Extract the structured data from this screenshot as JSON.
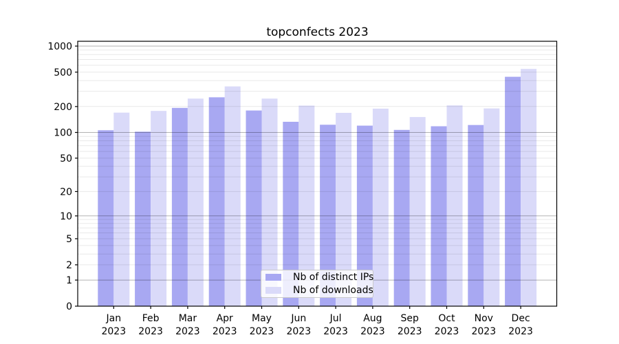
{
  "chart_data": {
    "type": "bar",
    "title": "topconfects 2023",
    "categories": [
      "Jan",
      "Feb",
      "Mar",
      "Apr",
      "May",
      "Jun",
      "Jul",
      "Aug",
      "Sep",
      "Oct",
      "Nov",
      "Dec"
    ],
    "x_tick_second_line": "2023",
    "series": [
      {
        "name": "Nb of distinct IPs",
        "color": "#a8a8f2",
        "values": [
          106,
          102,
          193,
          256,
          180,
          133,
          123,
          120,
          107,
          118,
          122,
          442
        ]
      },
      {
        "name": "Nb of downloads",
        "color": "#dadaf9",
        "values": [
          170,
          178,
          247,
          342,
          247,
          205,
          169,
          189,
          151,
          206,
          190,
          545
        ]
      }
    ],
    "yscale": "symlog",
    "yticks": [
      0,
      1,
      2,
      5,
      10,
      20,
      50,
      100,
      200,
      500,
      1000
    ],
    "major_grid_at": [
      1,
      10,
      100,
      1000
    ],
    "ylim": [
      0,
      1140
    ],
    "xlabel": "",
    "ylabel": "",
    "grid": true,
    "legend_position": "lower center"
  },
  "colors": {
    "background": "#ffffff",
    "spine": "#000000",
    "grid_major": "rgba(0,0,0,0.30)",
    "grid_minor": "rgba(0,0,0,0.09)",
    "tick_label": "#000000"
  }
}
